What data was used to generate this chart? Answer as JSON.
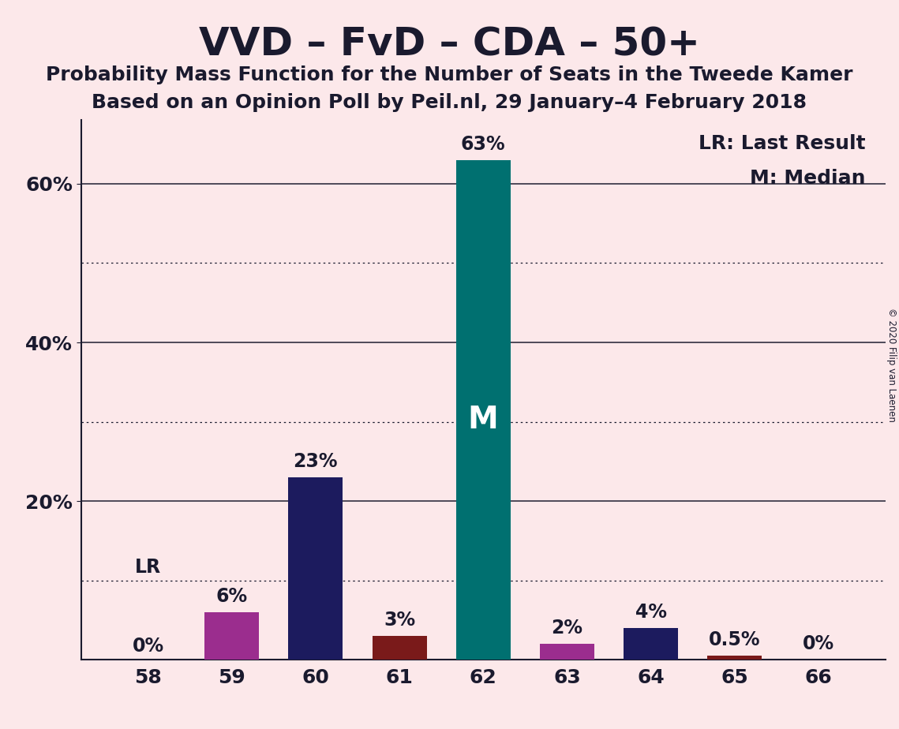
{
  "title": "VVD – FvD – CDA – 50+",
  "subtitle1": "Probability Mass Function for the Number of Seats in the Tweede Kamer",
  "subtitle2": "Based on an Opinion Poll by Peil.nl, 29 January–4 February 2018",
  "copyright": "© 2020 Filip van Laenen",
  "seats": [
    58,
    59,
    60,
    61,
    62,
    63,
    64,
    65,
    66
  ],
  "values": [
    0.001,
    6.0,
    23.0,
    3.0,
    63.0,
    2.0,
    4.0,
    0.5,
    0.001
  ],
  "display_values": [
    "0%",
    "6%",
    "23%",
    "3%",
    "63%",
    "2%",
    "4%",
    "0.5%",
    "0%"
  ],
  "bar_colors": [
    "#1c1b5e",
    "#9b2d8e",
    "#1c1b5e",
    "#7a1a1a",
    "#007070",
    "#9b2d8e",
    "#1c1b5e",
    "#7a1a1a",
    "#7a1a1a"
  ],
  "last_result_seat": 58,
  "median_seat": 62,
  "legend_lr": "LR: Last Result",
  "legend_m": "M: Median",
  "background_color": "#fce8ea",
  "ylim": [
    0,
    68
  ],
  "solid_yticks": [
    20,
    40,
    60
  ],
  "dotted_yticks": [
    10,
    30,
    50
  ],
  "bar_width": 0.65,
  "title_fontsize": 36,
  "subtitle_fontsize": 18,
  "label_fontsize": 17,
  "tick_fontsize": 18,
  "legend_fontsize": 18,
  "median_label_color": "#ffffff",
  "median_label_fontsize": 28,
  "text_color": "#1a1a2e"
}
